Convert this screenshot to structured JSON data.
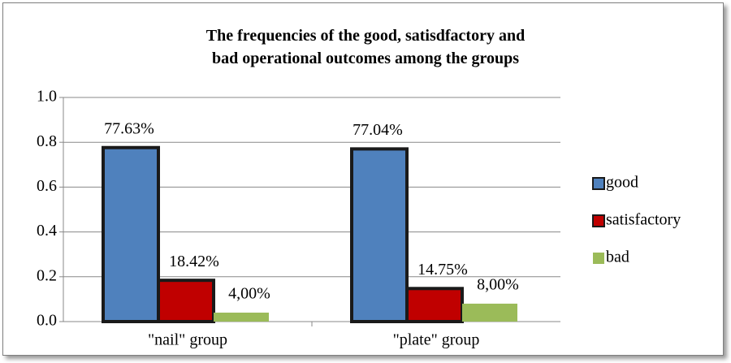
{
  "chart_data": {
    "type": "bar",
    "title": "The frequencies of the good, satisdfactory and bad operational outcomes among the groups",
    "categories": [
      "\"nail\" group",
      "\"plate\" group"
    ],
    "series": [
      {
        "name": "good",
        "color": "#4f81bd",
        "values": [
          0.7763,
          0.7704
        ],
        "value_labels": [
          "77.63%",
          "77.04%"
        ]
      },
      {
        "name": "satisfactory",
        "color": "#c00000",
        "values": [
          0.1842,
          0.1475
        ],
        "value_labels": [
          "18.42%",
          "14.75%"
        ]
      },
      {
        "name": "bad",
        "color": "#9bbb59",
        "values": [
          0.04,
          0.08
        ],
        "value_labels": [
          "4,00%",
          "8,00%"
        ]
      }
    ],
    "ylim": [
      0,
      1
    ],
    "yticks": [
      {
        "value": 0,
        "label": "0.0"
      },
      0.2,
      0.4,
      0.6,
      0.8,
      {
        "value": 1,
        "label": "1.0"
      }
    ],
    "grid": true,
    "legend": "right"
  }
}
